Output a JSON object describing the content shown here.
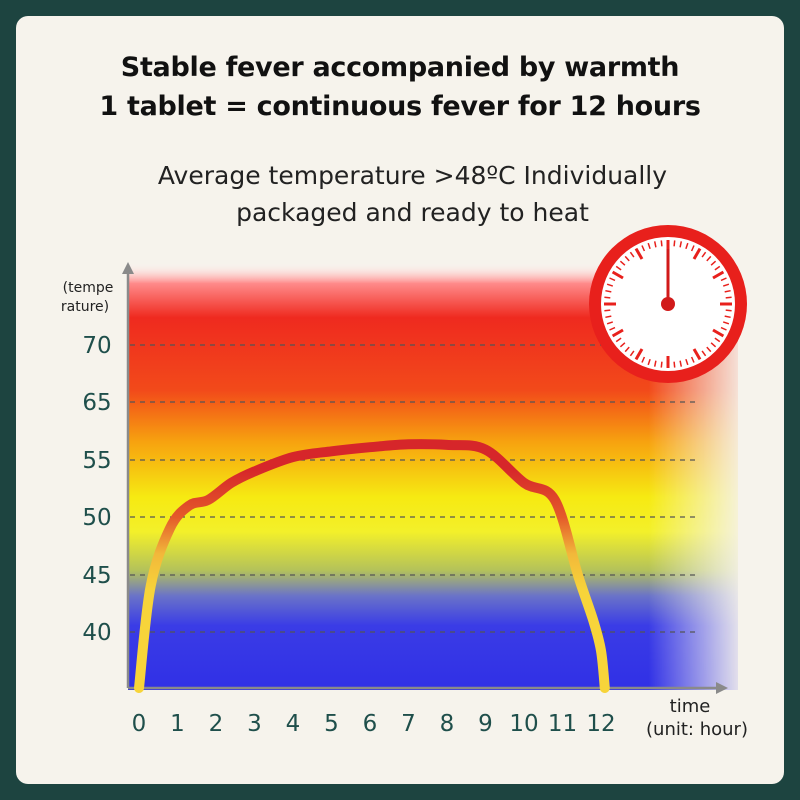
{
  "header": {
    "line1": "Stable fever accompanied by warmth",
    "line2": "1 tablet = continuous fever for 12 hours"
  },
  "subtitle": {
    "line1": "Average temperature >48ºC Individually",
    "line2": "packaged and ready to heat"
  },
  "icons": {
    "clock": "clock-icon"
  },
  "colors": {
    "background": "#1d4440",
    "card": "#f6f3ec",
    "curve_low": "#f7d43a",
    "curve_high": "#d6262a",
    "clock_red": "#e8201c",
    "tick_text": "#1f4f4b"
  },
  "chart_data": {
    "type": "line",
    "ylabel_line1": "(tempe",
    "ylabel_line2": "rature)",
    "xlabel_line1": "time",
    "xlabel_line2": "(unit: hour)",
    "x_ticks": [
      "0",
      "1",
      "2",
      "3",
      "4",
      "5",
      "6",
      "7",
      "8",
      "9",
      "10",
      "11",
      "12"
    ],
    "y_ticks": [
      "40",
      "45",
      "50",
      "55",
      "65",
      "70"
    ],
    "grid": "dashed horizontal lines at each y tick",
    "series": [
      {
        "x": [
          0,
          0.3,
          0.8,
          1.3,
          1.8,
          2.4,
          3,
          4,
          5,
          6,
          7,
          8,
          9,
          10,
          10.8,
          11.4,
          11.8,
          12,
          12.1
        ],
        "y": [
          37,
          44,
          49,
          51,
          51.5,
          53,
          54,
          55.5,
          56.5,
          57.2,
          57.7,
          57.6,
          56.8,
          53,
          51.5,
          45,
          41,
          39,
          37
        ]
      }
    ]
  }
}
